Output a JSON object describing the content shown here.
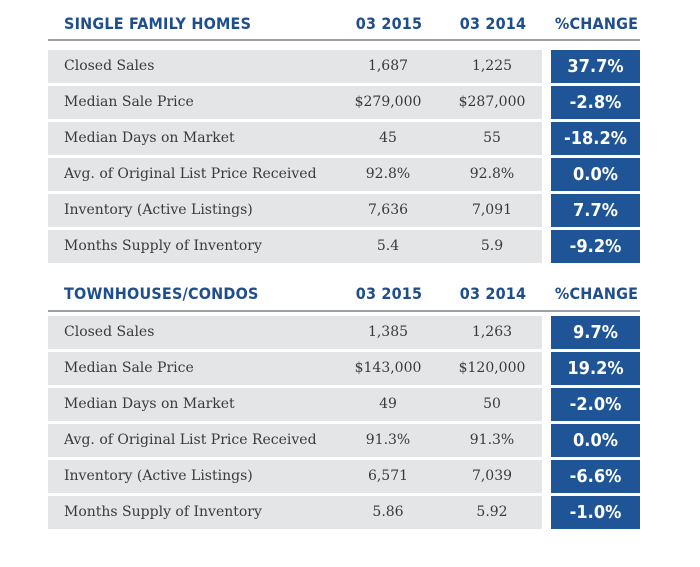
{
  "single_family": {
    "title": "SINGLE FAMILY HOMES",
    "col1": "03 2015",
    "col2": "03 2014",
    "col3": "%CHANGE",
    "rows": [
      {
        "label": "Closed Sales",
        "v2015": "1,687",
        "v2014": "1,225",
        "change": "37.7%"
      },
      {
        "label": "Median Sale Price",
        "v2015": "$279,000",
        "v2014": "$287,000",
        "change": "-2.8%"
      },
      {
        "label": "Median Days on Market",
        "v2015": "45",
        "v2014": "55",
        "change": "-18.2%"
      },
      {
        "label": "Avg. of Original List Price Received",
        "v2015": "92.8%",
        "v2014": "92.8%",
        "change": "0.0%"
      },
      {
        "label": "Inventory (Active Listings)",
        "v2015": "7,636",
        "v2014": "7,091",
        "change": "7.7%"
      },
      {
        "label": "Months Supply of Inventory",
        "v2015": "5.4",
        "v2014": "5.9",
        "change": "-9.2%"
      }
    ]
  },
  "townhouses": {
    "title": "TOWNHOUSES/CONDOS",
    "col1": "03 2015",
    "col2": "03 2014",
    "col3": "%CHANGE",
    "rows": [
      {
        "label": "Closed Sales",
        "v2015": "1,385",
        "v2014": "1,263",
        "change": "9.7%"
      },
      {
        "label": "Median Sale Price",
        "v2015": "$143,000",
        "v2014": "$120,000",
        "change": "19.2%"
      },
      {
        "label": "Median Days on Market",
        "v2015": "49",
        "v2014": "50",
        "change": "-2.0%"
      },
      {
        "label": "Avg. of Original List Price Received",
        "v2015": "91.3%",
        "v2014": "91.3%",
        "change": "0.0%"
      },
      {
        "label": "Inventory (Active Listings)",
        "v2015": "6,571",
        "v2014": "7,039",
        "change": "-6.6%"
      },
      {
        "label": "Months Supply of Inventory",
        "v2015": "5.86",
        "v2014": "5.92",
        "change": "-1.0%"
      }
    ]
  },
  "colors": {
    "heading": "#1f4e8c",
    "change_box": "#1f5597",
    "row_bg": "#e4e5e6"
  }
}
